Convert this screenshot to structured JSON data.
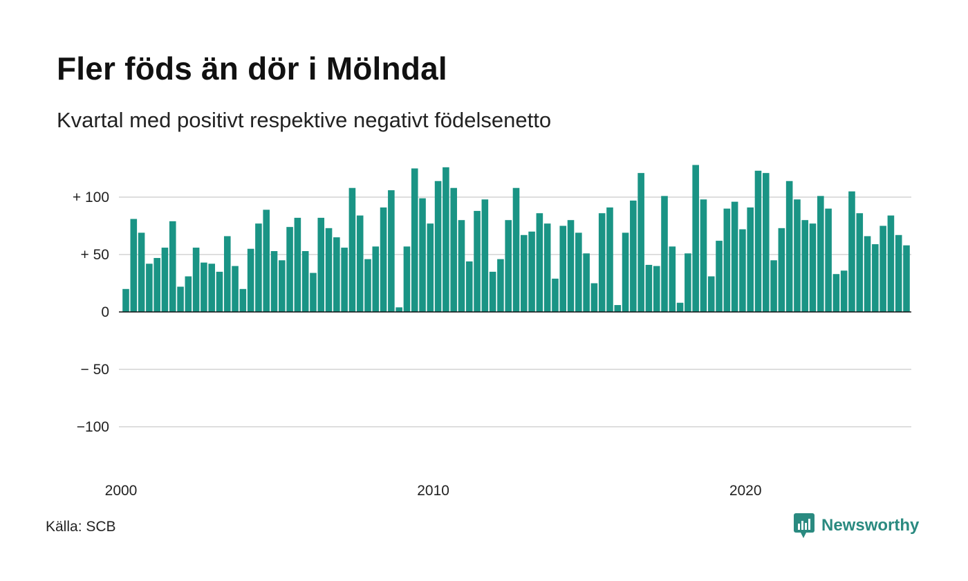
{
  "title": "Fler föds än dör i Mölndal",
  "subtitle": "Kvartal med positivt respektive negativt födelsenetto",
  "source": "Källa: SCB",
  "brand": {
    "name": "Newsworthy",
    "icon": "newsworthy-logo-icon",
    "color": "#2a8a80"
  },
  "chart_data": {
    "type": "bar",
    "title": "Fler föds än dör i Mölndal",
    "subtitle": "Kvartal med positivt respektive negativt födelsenetto",
    "xlabel": "",
    "ylabel": "",
    "color": "#1a9485",
    "ylim": [
      -140,
      140
    ],
    "grid": true,
    "y_ticks": [
      {
        "value": 100,
        "label": "+ 100"
      },
      {
        "value": 50,
        "label": "+  50"
      },
      {
        "value": 0,
        "label": "0"
      },
      {
        "value": -50,
        "label": "− 50"
      },
      {
        "value": -100,
        "label": "−100"
      }
    ],
    "x_ticks": [
      {
        "index": 0,
        "label": "2000"
      },
      {
        "index": 40,
        "label": "2010"
      },
      {
        "index": 80,
        "label": "2020"
      }
    ],
    "values": [
      20,
      81,
      69,
      42,
      47,
      56,
      79,
      22,
      31,
      56,
      43,
      42,
      35,
      66,
      40,
      20,
      55,
      77,
      89,
      53,
      45,
      74,
      82,
      53,
      34,
      82,
      73,
      65,
      56,
      108,
      84,
      46,
      57,
      91,
      106,
      4,
      57,
      125,
      99,
      77,
      114,
      126,
      108,
      80,
      44,
      88,
      98,
      35,
      46,
      80,
      108,
      67,
      70,
      86,
      77,
      29,
      75,
      80,
      69,
      51,
      25,
      86,
      91,
      6,
      69,
      97,
      121,
      41,
      40,
      101,
      57,
      8,
      51,
      128,
      98,
      31,
      62,
      90,
      96,
      72,
      91,
      123,
      121,
      45,
      73,
      114,
      98,
      80,
      77,
      101,
      90,
      33,
      36,
      105,
      86,
      66,
      59,
      75,
      84,
      67,
      58
    ]
  }
}
